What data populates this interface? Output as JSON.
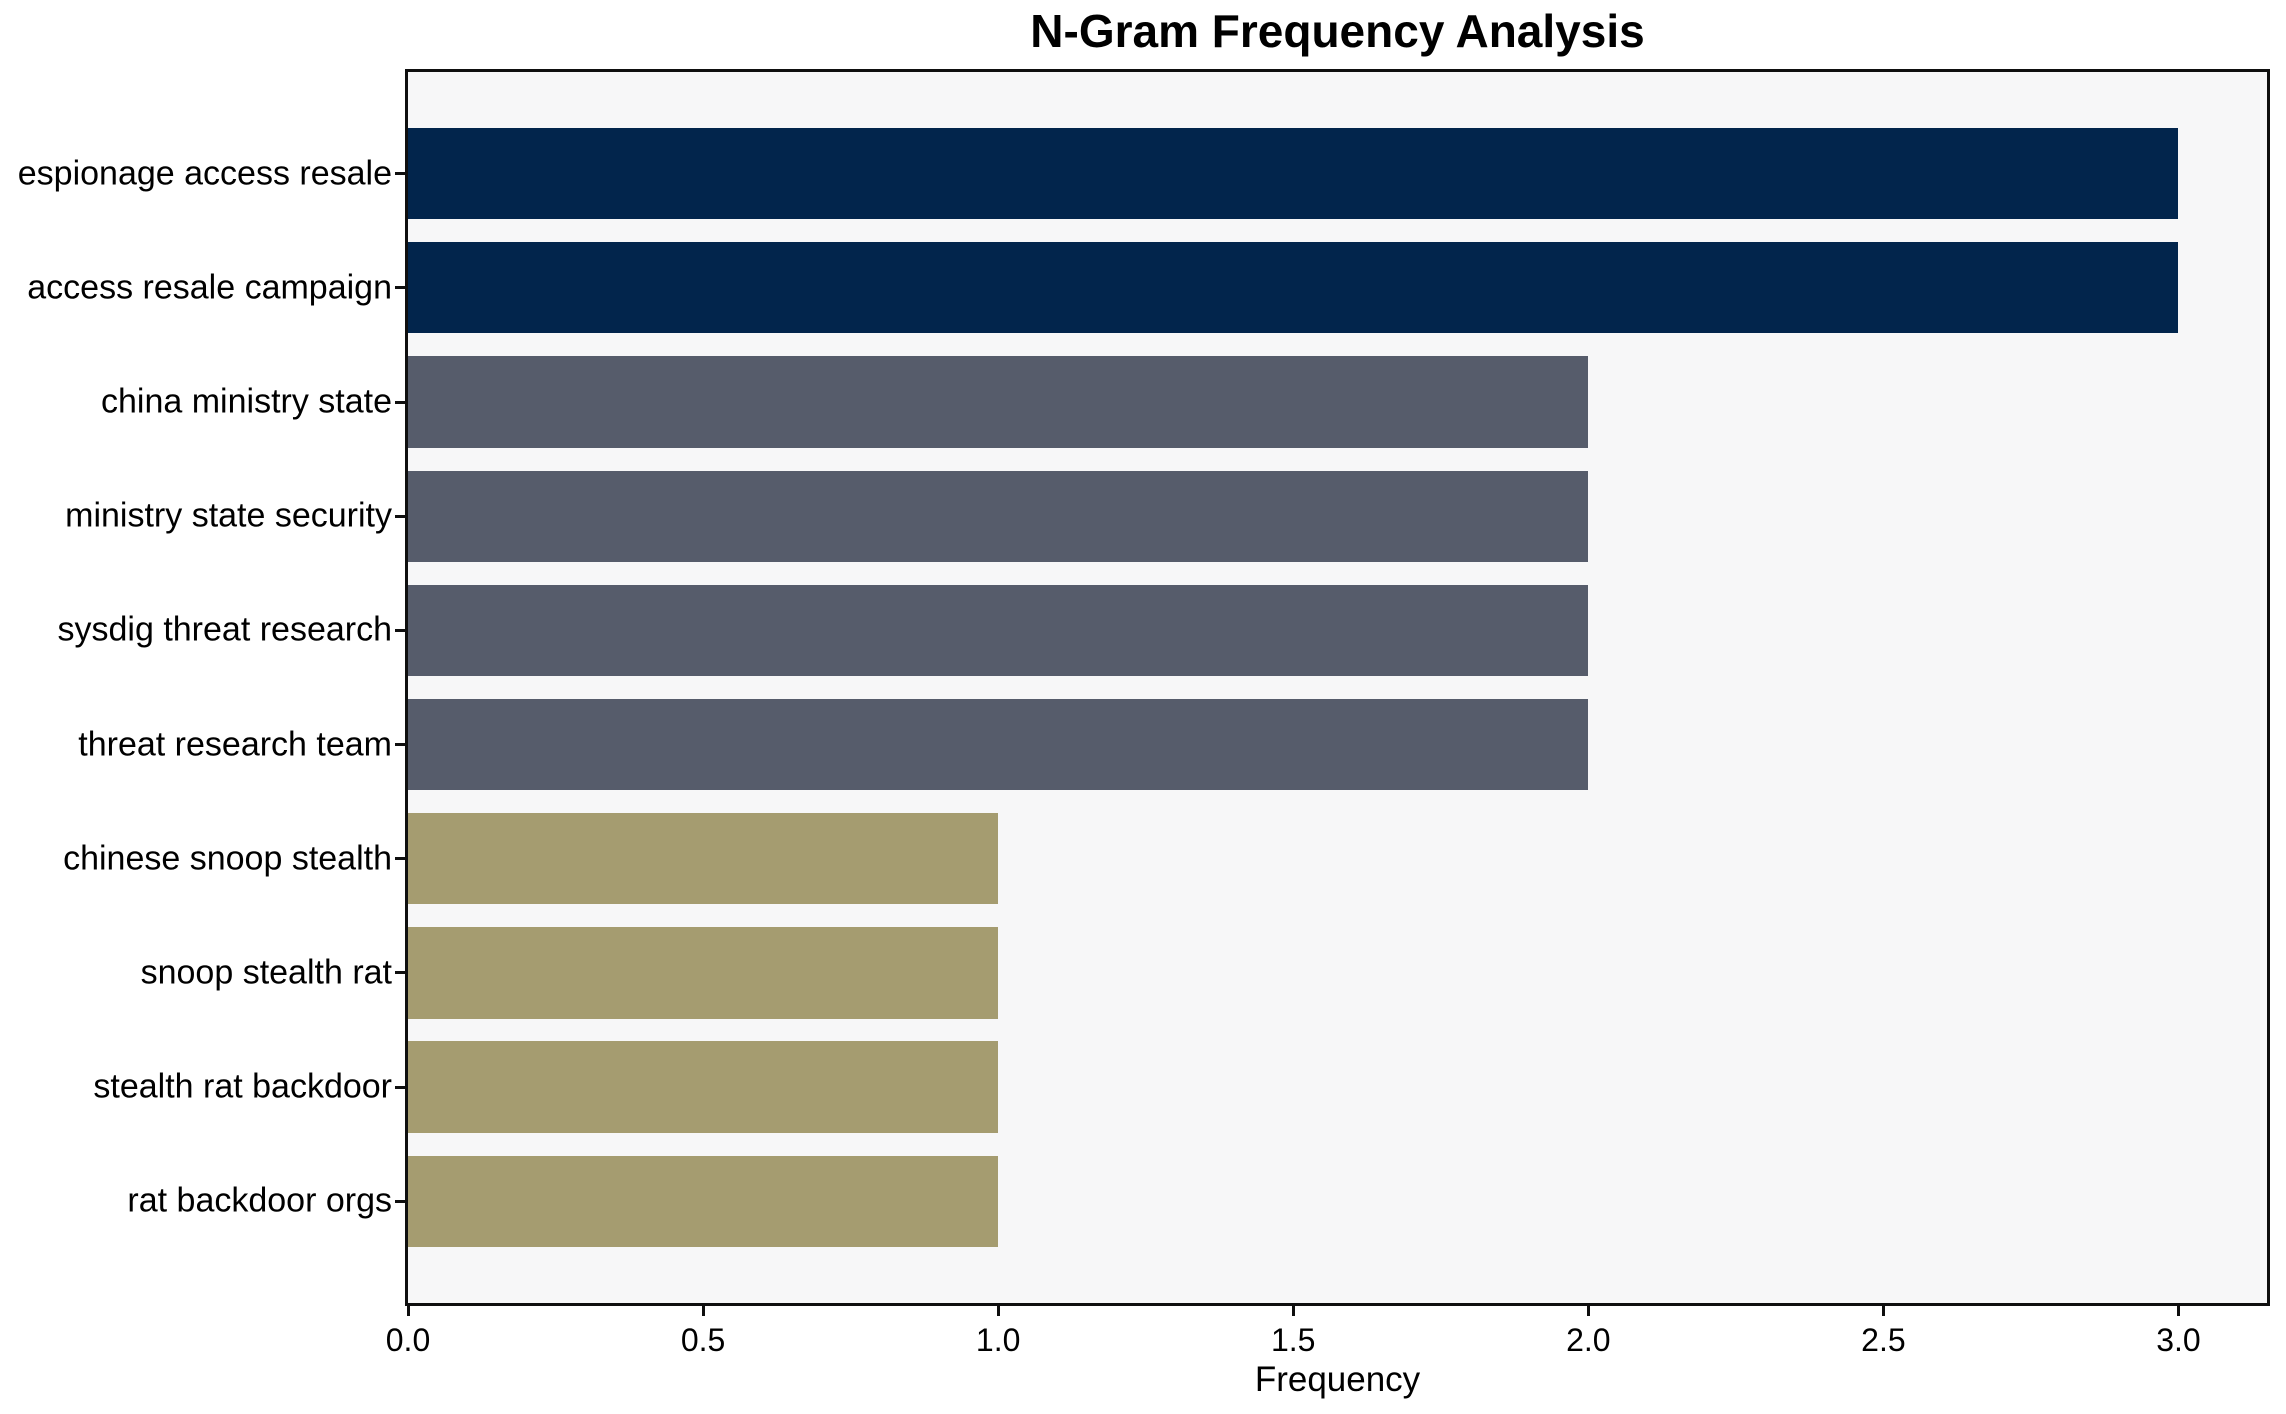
{
  "chart_data": {
    "type": "bar",
    "orientation": "horizontal",
    "title": "N-Gram Frequency Analysis",
    "xlabel": "Frequency",
    "ylabel": "",
    "categories": [
      "espionage access resale",
      "access resale campaign",
      "china ministry state",
      "ministry state security",
      "sysdig threat research",
      "threat research team",
      "chinese snoop stealth",
      "snoop stealth rat",
      "stealth rat backdoor",
      "rat backdoor orgs"
    ],
    "values": [
      3,
      3,
      2,
      2,
      2,
      2,
      1,
      1,
      1,
      1
    ],
    "bar_colors": [
      "#02254c",
      "#02254c",
      "#565c6b",
      "#565c6b",
      "#565c6b",
      "#565c6b",
      "#a59c70",
      "#a59c70",
      "#a59c70",
      "#a59c70"
    ],
    "xlim": [
      0,
      3.15
    ],
    "xticks": [
      {
        "value": 0.0,
        "label": "0.0"
      },
      {
        "value": 0.5,
        "label": "0.5"
      },
      {
        "value": 1.0,
        "label": "1.0"
      },
      {
        "value": 1.5,
        "label": "1.5"
      },
      {
        "value": 2.0,
        "label": "2.0"
      },
      {
        "value": 2.5,
        "label": "2.5"
      },
      {
        "value": 3.0,
        "label": "3.0"
      }
    ],
    "grid": false,
    "legend": false,
    "colors": {
      "figure_bg": "#ffffff",
      "plot_bg": "#f7f7f8",
      "axis": "#0f0f0f",
      "text": "#000000"
    }
  }
}
